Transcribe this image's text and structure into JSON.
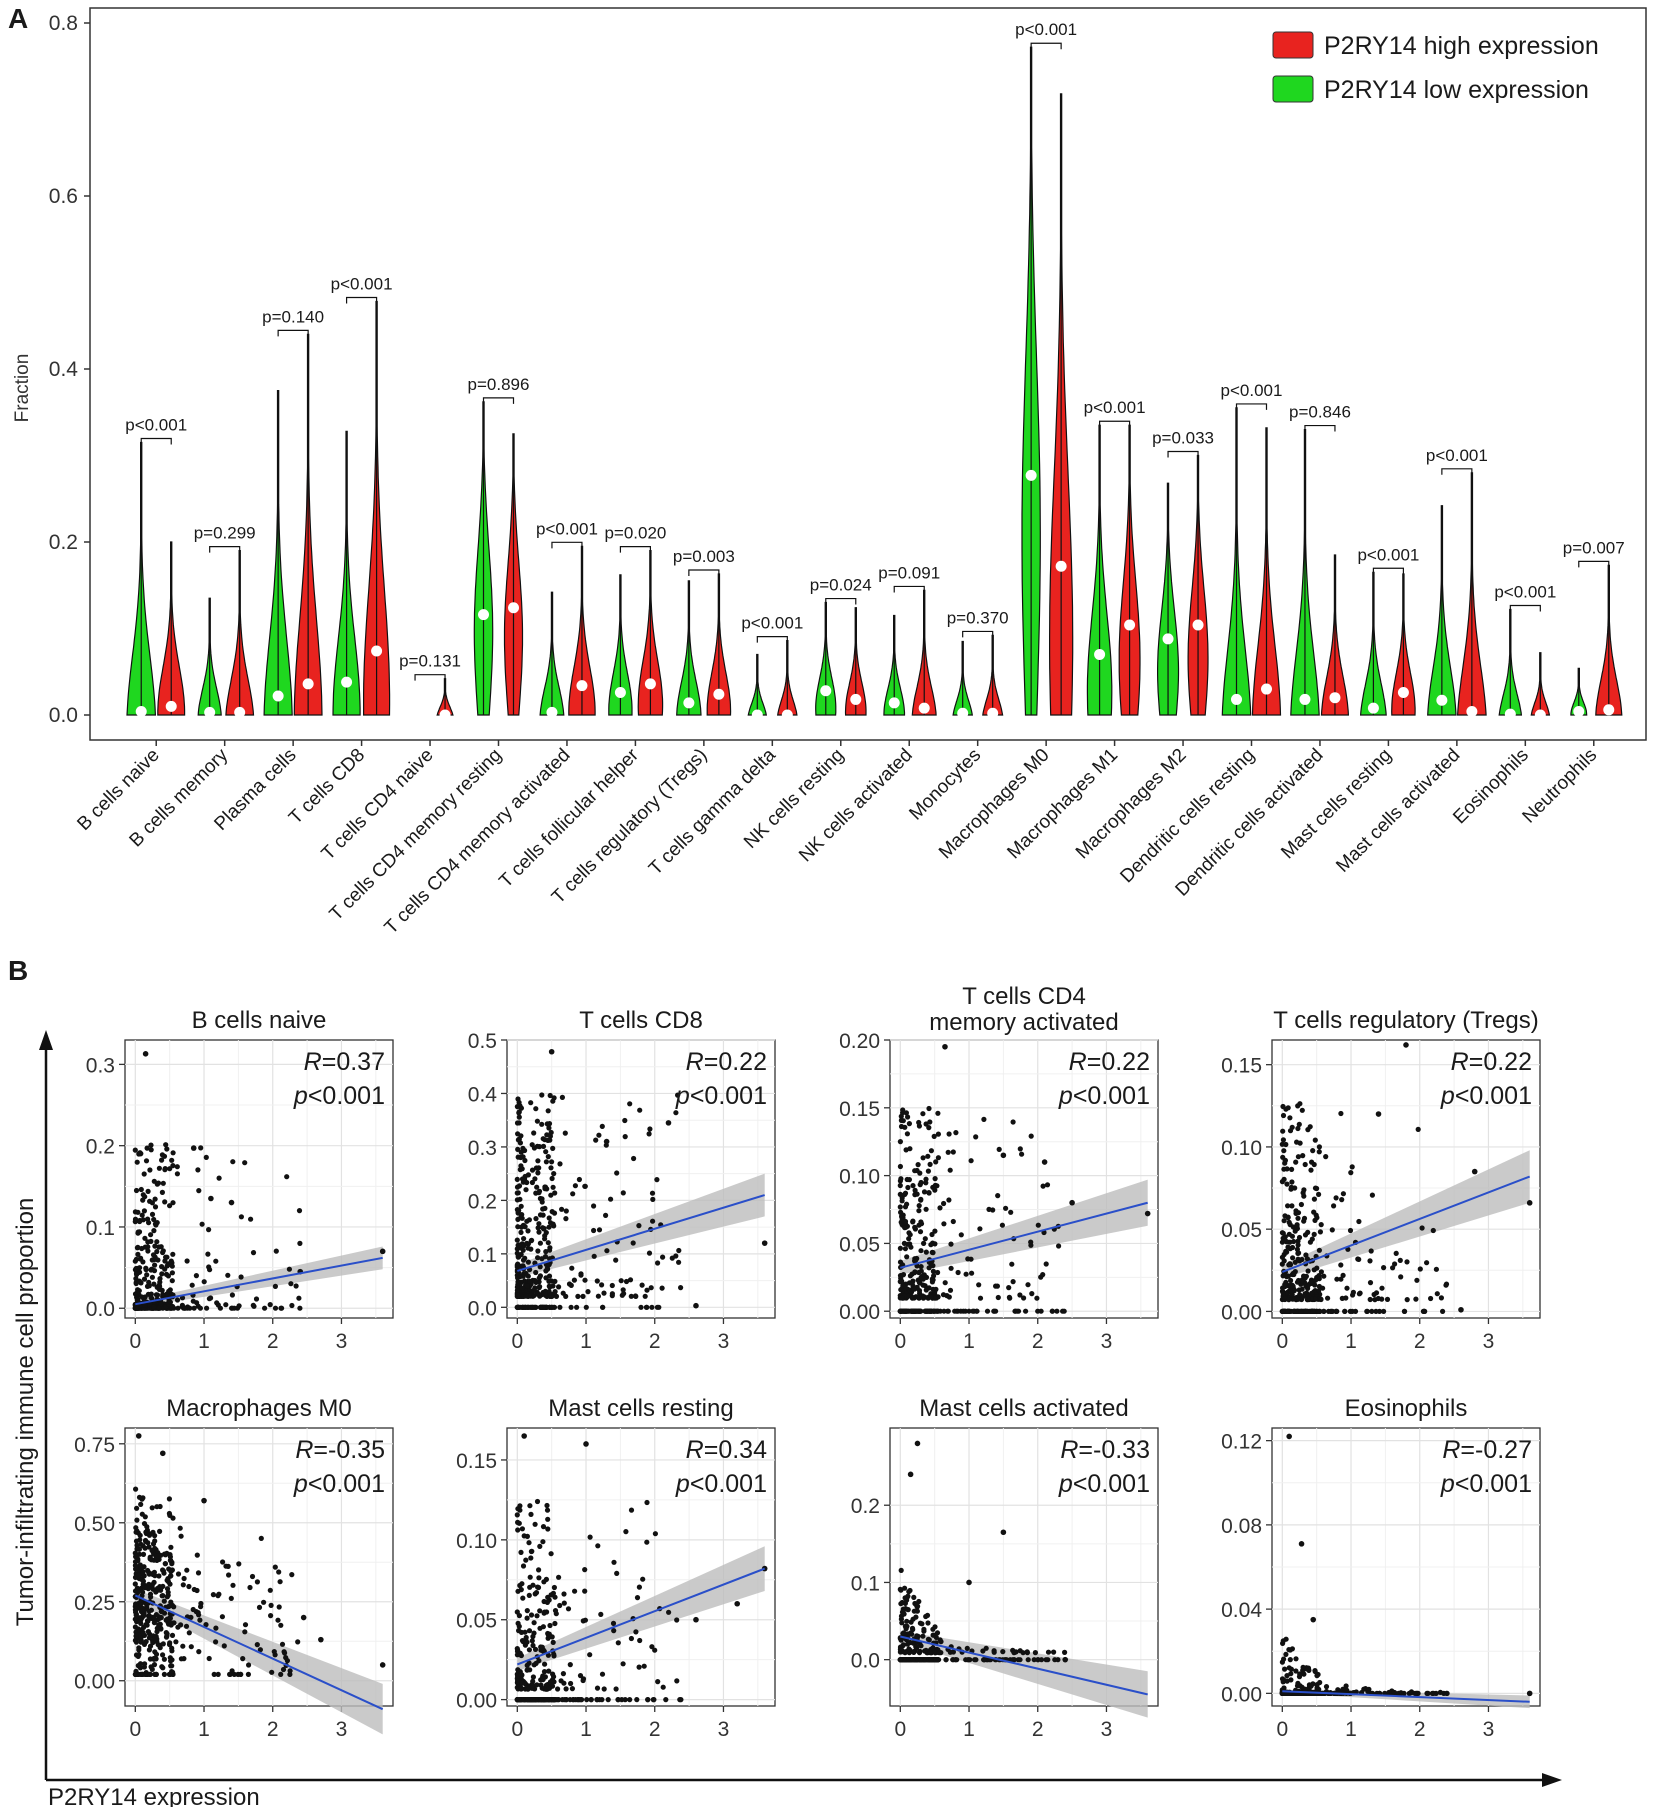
{
  "figure": {
    "panel_a_label": "A",
    "panel_b_label": "B",
    "b_xlabel": "P2RY14 expression",
    "b_ylabel": "Tumor-infiltrating immune cell proportion"
  },
  "colors": {
    "high": "#e8231f",
    "low": "#1fd71f",
    "trend": "#2a4fc9",
    "band": "#bdbdbd"
  },
  "chart_data": [
    {
      "type": "violin",
      "ylabel": "Fraction",
      "ylim": [
        0,
        0.8
      ],
      "yticks": [
        "0.0",
        "0.2",
        "0.4",
        "0.6",
        "0.8"
      ],
      "legend": {
        "position": "top-right",
        "items": [
          {
            "label": "P2RY14 high expression",
            "color": "#e8231f"
          },
          {
            "label": "P2RY14 low expression",
            "color": "#1fd71f"
          }
        ]
      },
      "categories": [
        {
          "name": "B cells naive",
          "p": "p<0.001",
          "low": {
            "max": 0.315,
            "median": 0.004,
            "peak": 0.01
          },
          "high": {
            "max": 0.2,
            "median": 0.01,
            "peak": 0.02
          }
        },
        {
          "name": "B cells memory",
          "p": "p=0.299",
          "low": {
            "max": 0.135,
            "median": 0.003,
            "peak": 0.005
          },
          "high": {
            "max": 0.19,
            "median": 0.003,
            "peak": 0.005
          }
        },
        {
          "name": "Plasma cells",
          "p": "p=0.140",
          "low": {
            "max": 0.375,
            "median": 0.022,
            "peak": 0.02
          },
          "high": {
            "max": 0.44,
            "median": 0.036,
            "peak": 0.03
          }
        },
        {
          "name": "T cells CD8",
          "p": "p<0.001",
          "low": {
            "max": 0.328,
            "median": 0.038,
            "peak": 0.03
          },
          "high": {
            "max": 0.478,
            "median": 0.074,
            "peak": 0.06
          }
        },
        {
          "name": "T cells CD4 naive",
          "p": "p=0.131",
          "low": {
            "max": 0.0,
            "median": 0.0,
            "peak": 0.0
          },
          "high": {
            "max": 0.042,
            "median": 0.0,
            "peak": 0.0
          }
        },
        {
          "name": "T cells CD4 memory resting",
          "p": "p=0.896",
          "low": {
            "max": 0.362,
            "median": 0.116,
            "peak": 0.14
          },
          "high": {
            "max": 0.325,
            "median": 0.124,
            "peak": 0.13
          }
        },
        {
          "name": "T cells CD4 memory activated",
          "p": "p<0.001",
          "low": {
            "max": 0.142,
            "median": 0.003,
            "peak": 0.005
          },
          "high": {
            "max": 0.195,
            "median": 0.034,
            "peak": 0.02
          }
        },
        {
          "name": "T cells follicular helper",
          "p": "p=0.020",
          "low": {
            "max": 0.162,
            "median": 0.026,
            "peak": 0.02
          },
          "high": {
            "max": 0.19,
            "median": 0.036,
            "peak": 0.03
          }
        },
        {
          "name": "T cells regulatory (Tregs)",
          "p": "p=0.003",
          "low": {
            "max": 0.155,
            "median": 0.014,
            "peak": 0.01
          },
          "high": {
            "max": 0.163,
            "median": 0.024,
            "peak": 0.02
          }
        },
        {
          "name": "T cells gamma delta",
          "p": "p<0.001",
          "low": {
            "max": 0.07,
            "median": 0.0,
            "peak": 0.0
          },
          "high": {
            "max": 0.086,
            "median": 0.0,
            "peak": 0.0
          }
        },
        {
          "name": "NK cells resting",
          "p": "p=0.024",
          "low": {
            "max": 0.13,
            "median": 0.028,
            "peak": 0.02
          },
          "high": {
            "max": 0.124,
            "median": 0.018,
            "peak": 0.015
          }
        },
        {
          "name": "NK cells activated",
          "p": "p=0.091",
          "low": {
            "max": 0.115,
            "median": 0.014,
            "peak": 0.01
          },
          "high": {
            "max": 0.144,
            "median": 0.008,
            "peak": 0.005
          }
        },
        {
          "name": "Monocytes",
          "p": "p=0.370",
          "low": {
            "max": 0.085,
            "median": 0.002,
            "peak": 0.0
          },
          "high": {
            "max": 0.092,
            "median": 0.002,
            "peak": 0.0
          }
        },
        {
          "name": "Macrophages M0",
          "p": "p<0.001",
          "low": {
            "max": 0.772,
            "median": 0.277,
            "peak": 0.3
          },
          "high": {
            "max": 0.718,
            "median": 0.172,
            "peak": 0.16
          }
        },
        {
          "name": "Macrophages M1",
          "p": "p<0.001",
          "low": {
            "max": 0.335,
            "median": 0.07,
            "peak": 0.06
          },
          "high": {
            "max": 0.335,
            "median": 0.104,
            "peak": 0.1
          }
        },
        {
          "name": "Macrophages M2",
          "p": "p=0.033",
          "low": {
            "max": 0.268,
            "median": 0.088,
            "peak": 0.08
          },
          "high": {
            "max": 0.3,
            "median": 0.104,
            "peak": 0.1
          }
        },
        {
          "name": "Dendritic cells resting",
          "p": "p<0.001",
          "low": {
            "max": 0.355,
            "median": 0.018,
            "peak": 0.01
          },
          "high": {
            "max": 0.332,
            "median": 0.03,
            "peak": 0.02
          }
        },
        {
          "name": "Dendritic cells activated",
          "p": "p=0.846",
          "low": {
            "max": 0.33,
            "median": 0.018,
            "peak": 0.01
          },
          "high": {
            "max": 0.185,
            "median": 0.02,
            "peak": 0.01
          }
        },
        {
          "name": "Mast cells resting",
          "p": "p<0.001",
          "low": {
            "max": 0.165,
            "median": 0.008,
            "peak": 0.005
          },
          "high": {
            "max": 0.163,
            "median": 0.026,
            "peak": 0.02
          }
        },
        {
          "name": "Mast cells activated",
          "p": "p<0.001",
          "low": {
            "max": 0.242,
            "median": 0.017,
            "peak": 0.01
          },
          "high": {
            "max": 0.28,
            "median": 0.004,
            "peak": 0.003
          }
        },
        {
          "name": "Eosinophils",
          "p": "p<0.001",
          "low": {
            "max": 0.122,
            "median": 0.001,
            "peak": 0.0
          },
          "high": {
            "max": 0.072,
            "median": 0.0,
            "peak": 0.0
          }
        },
        {
          "name": "Neutrophils",
          "p": "p=0.007",
          "low": {
            "max": 0.054,
            "median": 0.004,
            "peak": 0.005
          },
          "high": {
            "max": 0.173,
            "median": 0.006,
            "peak": 0.008
          }
        }
      ]
    },
    {
      "type": "scatter",
      "title": "B cells naive",
      "R": "R",
      "R_value": "=0.37",
      "p": "p",
      "p_value": "<0.001",
      "xlim": [
        -0.15,
        3.75
      ],
      "ylim": [
        -0.012,
        0.33
      ],
      "xticks": [
        "0",
        "1",
        "2",
        "3"
      ],
      "yticks": [
        "0.0",
        "0.1",
        "0.2",
        "0.3"
      ],
      "ytick_values": [
        0,
        0.1,
        0.2,
        0.3
      ],
      "fit": {
        "y0": 0.005,
        "y1": 0.062,
        "band0": 0.004,
        "band1": 0.014
      },
      "points": {
        "count": 380,
        "ymax": 0.2,
        "floor_frac": 0.2
      },
      "outliers": [
        [
          0.15,
          0.313
        ],
        [
          0.85,
          0.197
        ],
        [
          1.1,
          0.135
        ],
        [
          1.4,
          0.13
        ],
        [
          2.4,
          0.045
        ],
        [
          3.6,
          0.07
        ]
      ]
    },
    {
      "type": "scatter",
      "title": "T cells CD8",
      "R": "R",
      "R_value": "=0.22",
      "p": "p",
      "p_value": "<0.001",
      "xlim": [
        -0.15,
        3.75
      ],
      "ylim": [
        -0.02,
        0.5
      ],
      "xticks": [
        "0",
        "1",
        "2",
        "3"
      ],
      "yticks": [
        "0.0",
        "0.1",
        "0.2",
        "0.3",
        "0.4",
        "0.5"
      ],
      "ytick_values": [
        0,
        0.1,
        0.2,
        0.3,
        0.4,
        0.5
      ],
      "fit": {
        "y0": 0.068,
        "y1": 0.21,
        "band0": 0.012,
        "band1": 0.04
      },
      "points": {
        "count": 460,
        "ymax": 0.38,
        "floor_frac": 0.15
      },
      "outliers": [
        [
          0.5,
          0.478
        ],
        [
          1.3,
          0.31
        ],
        [
          2.2,
          0.345
        ],
        [
          3.6,
          0.12
        ],
        [
          2.6,
          0.003
        ]
      ]
    },
    {
      "type": "scatter",
      "title": "T cells CD4",
      "subtitle": "memory activated",
      "R": "R",
      "R_value": "=0.22",
      "p": "p",
      "p_value": "<0.001",
      "xlim": [
        -0.15,
        3.75
      ],
      "ylim": [
        -0.005,
        0.2
      ],
      "xticks": [
        "0",
        "1",
        "2",
        "3"
      ],
      "yticks": [
        "0.00",
        "0.05",
        "0.10",
        "0.15",
        "0.20"
      ],
      "ytick_values": [
        0,
        0.05,
        0.1,
        0.15,
        0.2
      ],
      "fit": {
        "y0": 0.032,
        "y1": 0.08,
        "band0": 0.005,
        "band1": 0.017
      },
      "points": {
        "count": 420,
        "ymax": 0.14,
        "floor_frac": 0.3
      },
      "outliers": [
        [
          0.65,
          0.195
        ],
        [
          1.5,
          0.115
        ],
        [
          2.1,
          0.11
        ],
        [
          2.5,
          0.08
        ],
        [
          3.6,
          0.072
        ]
      ]
    },
    {
      "type": "scatter",
      "title": "T cells regulatory (Tregs)",
      "R": "R",
      "R_value": "=0.22",
      "p": "p",
      "p_value": "<0.001",
      "xlim": [
        -0.15,
        3.75
      ],
      "ylim": [
        -0.004,
        0.165
      ],
      "xticks": [
        "0",
        "1",
        "2",
        "3"
      ],
      "yticks": [
        "0.00",
        "0.05",
        "0.10",
        "0.15"
      ],
      "ytick_values": [
        0,
        0.05,
        0.1,
        0.15
      ],
      "fit": {
        "y0": 0.024,
        "y1": 0.082,
        "band0": 0.004,
        "band1": 0.016
      },
      "points": {
        "count": 420,
        "ymax": 0.12,
        "floor_frac": 0.25
      },
      "outliers": [
        [
          1.8,
          0.162
        ],
        [
          1.4,
          0.12
        ],
        [
          2.8,
          0.085
        ],
        [
          3.6,
          0.066
        ],
        [
          2.6,
          0.001
        ]
      ]
    },
    {
      "type": "scatter",
      "title": "Macrophages M0",
      "R": "R",
      "R_value": "=-0.35",
      "p": "p",
      "p_value": "<0.001",
      "xlim": [
        -0.15,
        3.75
      ],
      "ylim": [
        -0.08,
        0.8
      ],
      "xticks": [
        "0",
        "1",
        "2",
        "3"
      ],
      "yticks": [
        "0.00",
        "0.25",
        "0.50",
        "0.75"
      ],
      "ytick_values": [
        0,
        0.25,
        0.5,
        0.75
      ],
      "fit": {
        "y0": 0.27,
        "y1": -0.09,
        "band0": 0.02,
        "band1": 0.08
      },
      "points": {
        "count": 460,
        "ymax": 0.7,
        "floor_frac": 0.0,
        "mode": "cloud",
        "center": 0.25
      },
      "outliers": [
        [
          0.05,
          0.775
        ],
        [
          0.4,
          0.72
        ],
        [
          1.0,
          0.57
        ],
        [
          2.45,
          0.2
        ],
        [
          2.7,
          0.13
        ],
        [
          3.6,
          0.05
        ]
      ]
    },
    {
      "type": "scatter",
      "title": "Mast cells resting",
      "R": "R",
      "R_value": "=0.34",
      "p": "p",
      "p_value": "<0.001",
      "xlim": [
        -0.15,
        3.75
      ],
      "ylim": [
        -0.004,
        0.17
      ],
      "xticks": [
        "0",
        "1",
        "2",
        "3"
      ],
      "yticks": [
        "0.00",
        "0.05",
        "0.10",
        "0.15"
      ],
      "ytick_values": [
        0,
        0.05,
        0.1,
        0.15
      ],
      "fit": {
        "y0": 0.022,
        "y1": 0.082,
        "band0": 0.004,
        "band1": 0.014
      },
      "points": {
        "count": 420,
        "ymax": 0.12,
        "floor_frac": 0.35
      },
      "outliers": [
        [
          0.1,
          0.165
        ],
        [
          1.0,
          0.16
        ],
        [
          2.6,
          0.05
        ],
        [
          3.2,
          0.06
        ],
        [
          3.6,
          0.082
        ]
      ]
    },
    {
      "type": "scatter",
      "title": "Mast cells activated",
      "R": "R",
      "R_value": "=-0.33",
      "p": "p",
      "p_value": "<0.001",
      "xlim": [
        -0.15,
        3.75
      ],
      "ylim": [
        -0.06,
        0.3
      ],
      "xticks": [
        "0",
        "1",
        "2",
        "3"
      ],
      "yticks": [
        "0.0",
        "0.1",
        "0.2"
      ],
      "ytick_values": [
        0,
        0.1,
        0.2
      ],
      "fit": {
        "y0": 0.03,
        "y1": -0.045,
        "band0": 0.007,
        "band1": 0.03
      },
      "points": {
        "count": 420,
        "ymax": 0.12,
        "floor_frac": 0.6,
        "decay": true
      },
      "outliers": [
        [
          0.25,
          0.28
        ],
        [
          0.15,
          0.24
        ],
        [
          1.5,
          0.165
        ],
        [
          1.0,
          0.1
        ],
        [
          2.4,
          0.0
        ]
      ]
    },
    {
      "type": "scatter",
      "title": "Eosinophils",
      "R": "R",
      "R_value": "=-0.27",
      "p": "p",
      "p_value": "<0.001",
      "xlim": [
        -0.15,
        3.75
      ],
      "ylim": [
        -0.006,
        0.126
      ],
      "xticks": [
        "0",
        "1",
        "2",
        "3"
      ],
      "yticks": [
        "0.00",
        "0.04",
        "0.08",
        "0.12"
      ],
      "ytick_values": [
        0,
        0.04,
        0.08,
        0.12
      ],
      "fit": {
        "y0": 0.001,
        "y1": -0.004,
        "band0": 0.0008,
        "band1": 0.003
      },
      "points": {
        "count": 380,
        "ymax": 0.03,
        "floor_frac": 0.7,
        "decay": true
      },
      "outliers": [
        [
          0.1,
          0.122
        ],
        [
          0.28,
          0.071
        ],
        [
          0.45,
          0.035
        ],
        [
          3.6,
          0.0
        ]
      ]
    }
  ]
}
